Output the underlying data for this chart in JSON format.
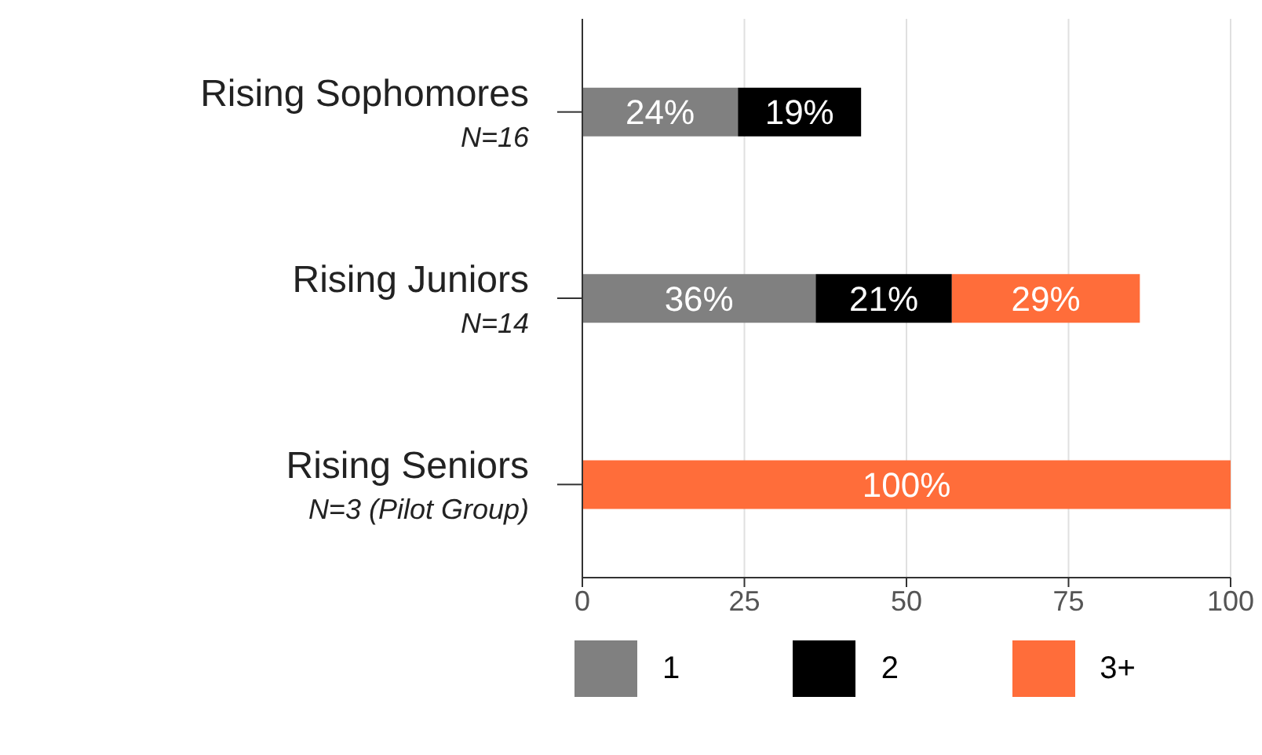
{
  "chart_data": {
    "type": "bar",
    "orientation": "horizontal",
    "stacked": true,
    "categories": [
      "Rising Sophomores\nN=16",
      "Rising Juniors\nN=14",
      "Rising Seniors\nN=3 (Pilot Group)"
    ],
    "series": [
      {
        "name": "1",
        "color": "#808080",
        "values": [
          24,
          36,
          null
        ],
        "value_labels": [
          "24%",
          "36%",
          null
        ]
      },
      {
        "name": "2",
        "color": "#000000",
        "values": [
          19,
          21,
          null
        ],
        "value_labels": [
          "19%",
          "21%",
          null
        ]
      },
      {
        "name": "3+",
        "color": "#ff6d3a",
        "values": [
          null,
          29,
          100
        ],
        "value_labels": [
          null,
          "29%",
          "100%"
        ]
      }
    ],
    "xlim": [
      0,
      100
    ],
    "xticks": [
      0,
      25,
      50,
      75,
      100
    ],
    "grid": "x",
    "legend": "bottom"
  }
}
